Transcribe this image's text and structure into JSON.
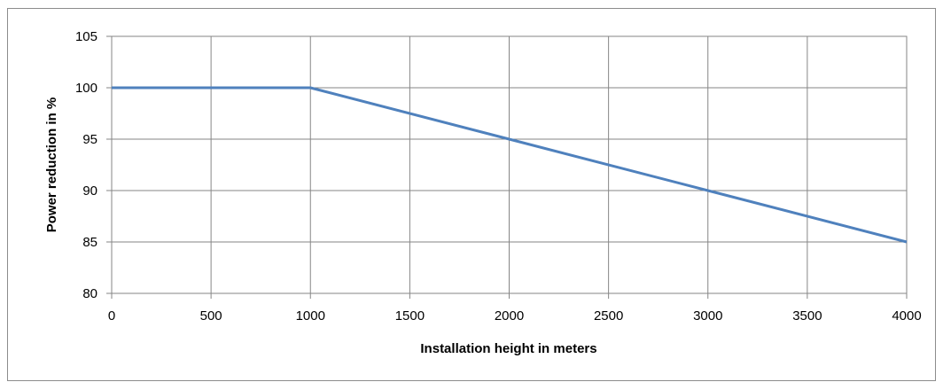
{
  "chart_data": {
    "type": "line",
    "xlabel": "Installation height in meters",
    "ylabel": "Power reduction in %",
    "xlim": [
      0,
      4000
    ],
    "ylim": [
      80,
      105
    ],
    "x_ticks": [
      "0",
      "500",
      "1000",
      "1500",
      "2000",
      "2500",
      "3000",
      "3500",
      "4000"
    ],
    "y_ticks": [
      "80",
      "85",
      "90",
      "95",
      "100",
      "105"
    ],
    "grid": true,
    "legend": "none",
    "series": [
      {
        "color": "#4f81bd",
        "x": [
          0,
          1000,
          2000,
          3000,
          4000
        ],
        "y": [
          100,
          100,
          95,
          90,
          85
        ]
      }
    ]
  }
}
